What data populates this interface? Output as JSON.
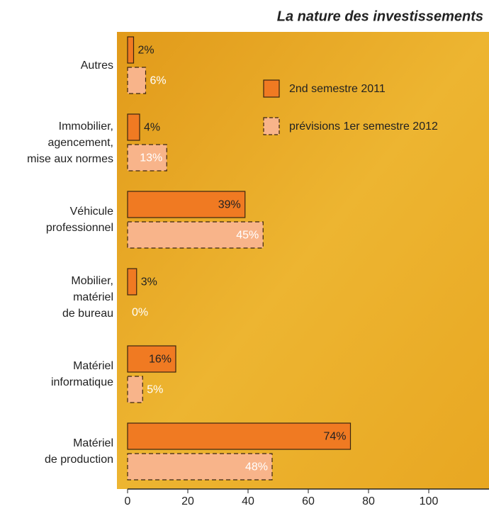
{
  "chart_data": {
    "type": "bar",
    "orientation": "horizontal",
    "title": "La nature des investissements",
    "categories": [
      "Autres",
      "Immobilier,\nagencement,\nmise aux normes",
      "Véhicule\nprofessionnel",
      "Mobilier,\nmatériel\nde bureau",
      "Matériel\ninformatique",
      "Matériel\nde production"
    ],
    "series": [
      {
        "name": "2nd semestre 2011",
        "color": "#f07a22",
        "values": [
          2,
          4,
          39,
          3,
          16,
          74
        ],
        "value_labels": [
          "2%",
          "4%",
          "39%",
          "3%",
          "16%",
          "74%"
        ]
      },
      {
        "name": "prévisions 1er semestre 2012",
        "color": "#f8b48a",
        "values": [
          6,
          13,
          45,
          0,
          5,
          48
        ],
        "value_labels": [
          "6%",
          "13%",
          "45%",
          "0%",
          "5%",
          "48%"
        ]
      }
    ],
    "xlim": [
      0,
      120
    ],
    "xticks": [
      0,
      20,
      40,
      60,
      80,
      100
    ]
  }
}
